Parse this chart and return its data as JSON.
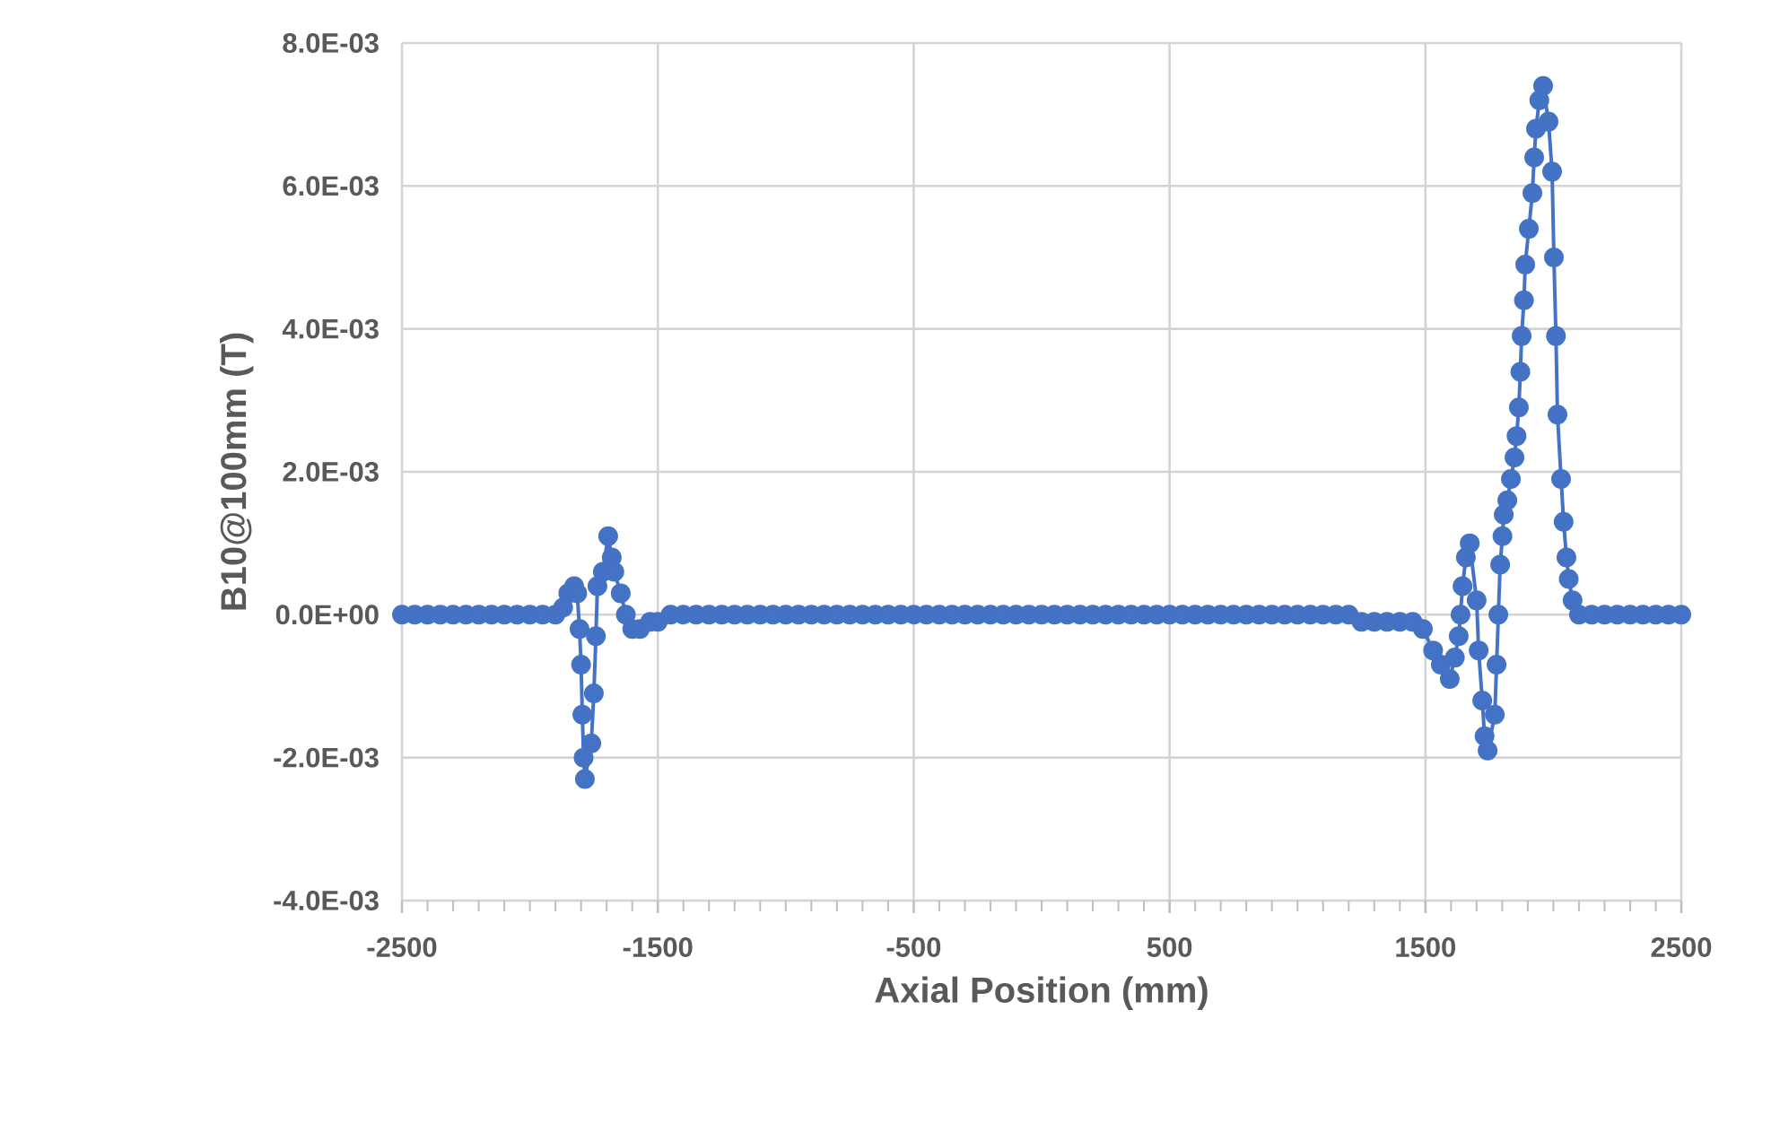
{
  "chart_data": {
    "type": "line",
    "xlabel": "Axial Position (mm)",
    "ylabel": "B10@100mm (T)",
    "color": "#4472c4",
    "marker": "circle",
    "line_style": "solid",
    "grid": true,
    "xlim": [
      -2500,
      2500
    ],
    "xticks": [
      -2500,
      -1500,
      -500,
      500,
      1500,
      2500
    ],
    "ylim": [
      -0.004,
      0.008
    ],
    "yticks": [
      {
        "value": -0.004,
        "label": "-4.0E-03"
      },
      {
        "value": -0.002,
        "label": "-2.0E-03"
      },
      {
        "value": 0,
        "label": "0.0E+00"
      },
      {
        "value": 0.002,
        "label": "2.0E-03"
      },
      {
        "value": 0.004,
        "label": "4.0E-03"
      },
      {
        "value": 0.006,
        "label": "6.0E-03"
      },
      {
        "value": 0.008,
        "label": "8.0E-03"
      }
    ],
    "x": [
      -2500,
      -2450,
      -2400,
      -2350,
      -2300,
      -2250,
      -2200,
      -2150,
      -2100,
      -2050,
      -2000,
      -1950,
      -1900,
      -1870,
      -1850,
      -1827,
      -1815,
      -1806,
      -1800,
      -1795,
      -1790,
      -1785,
      -1760,
      -1750,
      -1742,
      -1736,
      -1715,
      -1694,
      -1680,
      -1670,
      -1645,
      -1625,
      -1600,
      -1570,
      -1530,
      -1500,
      -1450,
      -1400,
      -1350,
      -1300,
      -1250,
      -1200,
      -1150,
      -1100,
      -1050,
      -1000,
      -950,
      -900,
      -850,
      -800,
      -750,
      -700,
      -650,
      -600,
      -550,
      -500,
      -450,
      -400,
      -350,
      -300,
      -250,
      -200,
      -150,
      -100,
      -50,
      0,
      50,
      100,
      150,
      200,
      250,
      300,
      350,
      400,
      450,
      500,
      550,
      600,
      650,
      700,
      750,
      800,
      850,
      900,
      950,
      1000,
      1050,
      1100,
      1150,
      1200,
      1250,
      1300,
      1350,
      1400,
      1450,
      1490,
      1530,
      1560,
      1595,
      1615,
      1630,
      1637,
      1645,
      1658,
      1673,
      1700,
      1708,
      1722,
      1731,
      1743,
      1771,
      1778,
      1785,
      1792,
      1801,
      1806,
      1820,
      1834,
      1848,
      1856,
      1865,
      1871,
      1876,
      1885,
      1890,
      1904,
      1918,
      1925,
      1932,
      1945,
      1960,
      1981,
      1995,
      2002,
      2010,
      2016,
      2030,
      2040,
      2051,
      2060,
      2075,
      2100,
      2150,
      2200,
      2250,
      2300,
      2350,
      2400,
      2450,
      2500
    ],
    "values": [
      0,
      0,
      0,
      0,
      0,
      0,
      0,
      0,
      0,
      0,
      0,
      0,
      0,
      0.0001,
      0.0003,
      0.0004,
      0.0003,
      -0.0002,
      -0.0007,
      -0.0014,
      -0.002,
      -0.0023,
      -0.0018,
      -0.0011,
      -0.0003,
      0.0004,
      0.0006,
      0.0011,
      0.0008,
      0.0006,
      0.0003,
      0,
      -0.0002,
      -0.0002,
      -0.0001,
      -0.0001,
      0,
      0,
      0,
      0,
      0,
      0,
      0,
      0,
      0,
      0,
      0,
      0,
      0,
      0,
      0,
      0,
      0,
      0,
      0,
      0,
      0,
      0,
      0,
      0,
      0,
      0,
      0,
      0,
      0,
      0,
      0,
      0,
      0,
      0,
      0,
      0,
      0,
      0,
      0,
      0,
      0,
      0,
      0,
      0,
      0,
      0,
      0,
      0,
      0,
      0,
      0,
      0,
      0,
      0,
      -0.0001,
      -0.0001,
      -0.0001,
      -0.0001,
      -0.0001,
      -0.0002,
      -0.0005,
      -0.0007,
      -0.0009,
      -0.0006,
      -0.0003,
      0,
      0.0004,
      0.0008,
      0.001,
      0.0002,
      -0.0005,
      -0.0012,
      -0.0017,
      -0.0019,
      -0.0014,
      -0.0007,
      0,
      0.0007,
      0.0011,
      0.0014,
      0.0016,
      0.0019,
      0.0022,
      0.0025,
      0.0029,
      0.0034,
      0.0039,
      0.0044,
      0.0049,
      0.0054,
      0.0059,
      0.0064,
      0.0068,
      0.0072,
      0.0074,
      0.0069,
      0.0062,
      0.005,
      0.0039,
      0.0028,
      0.0019,
      0.0013,
      0.0008,
      0.0005,
      0.0002,
      0,
      0,
      0,
      0,
      0,
      0,
      0,
      0,
      0
    ]
  }
}
